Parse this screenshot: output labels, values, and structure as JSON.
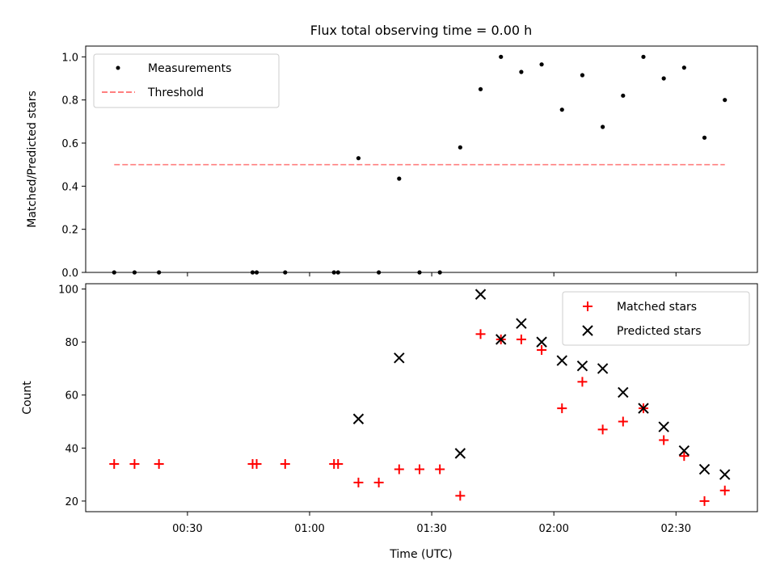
{
  "chart_data": [
    {
      "panel": "top",
      "type": "scatter",
      "title": "Flux total observing time = 0.00 h",
      "xlabel": "",
      "ylabel": "Matched/Predicted stars",
      "ylim": [
        0,
        1.05
      ],
      "yticks": [
        "0.0",
        "0.2",
        "0.4",
        "0.6",
        "0.8",
        "1.0"
      ],
      "legend_position": "top-left",
      "series": [
        {
          "name": "Measurements",
          "type": "scatter",
          "marker": "dot",
          "color": "#000000",
          "points": [
            [
              "00:12",
              0.0
            ],
            [
              "00:17",
              0.0
            ],
            [
              "00:23",
              0.0
            ],
            [
              "00:46",
              0.0
            ],
            [
              "00:47",
              0.0
            ],
            [
              "00:54",
              0.0
            ],
            [
              "01:06",
              0.0
            ],
            [
              "01:07",
              0.0
            ],
            [
              "01:12",
              0.53
            ],
            [
              "01:17",
              0.0
            ],
            [
              "01:22",
              0.435
            ],
            [
              "01:27",
              0.0
            ],
            [
              "01:32",
              0.0
            ],
            [
              "01:37",
              0.58
            ],
            [
              "01:42",
              0.85
            ],
            [
              "01:47",
              1.0
            ],
            [
              "01:52",
              0.93
            ],
            [
              "01:57",
              0.965
            ],
            [
              "02:02",
              0.755
            ],
            [
              "02:07",
              0.915
            ],
            [
              "02:12",
              0.675
            ],
            [
              "02:17",
              0.82
            ],
            [
              "02:22",
              1.0
            ],
            [
              "02:27",
              0.9
            ],
            [
              "02:32",
              0.95
            ],
            [
              "02:37",
              0.625
            ],
            [
              "02:42",
              0.8
            ]
          ]
        },
        {
          "name": "Threshold",
          "type": "line",
          "style": "dashed",
          "color": "#ff7f7f",
          "points": [
            [
              "00:12",
              0.5
            ],
            [
              "02:42",
              0.5
            ]
          ]
        }
      ]
    },
    {
      "panel": "bottom",
      "type": "scatter",
      "title": "",
      "xlabel": "Time (UTC)",
      "ylabel": "Count",
      "ylim": [
        16,
        102
      ],
      "yticks": [
        "20",
        "40",
        "60",
        "80",
        "100"
      ],
      "xticks": [
        "00:30",
        "01:00",
        "01:30",
        "02:00",
        "02:30"
      ],
      "xlim": [
        "00:05",
        "02:50"
      ],
      "legend_position": "top-right",
      "series": [
        {
          "name": "Matched stars",
          "marker": "plus",
          "color": "#ff0000",
          "points": [
            [
              "00:12",
              34
            ],
            [
              "00:17",
              34
            ],
            [
              "00:23",
              34
            ],
            [
              "00:46",
              34
            ],
            [
              "00:47",
              34
            ],
            [
              "00:54",
              34
            ],
            [
              "01:06",
              34
            ],
            [
              "01:07",
              34
            ],
            [
              "01:12",
              27
            ],
            [
              "01:17",
              27
            ],
            [
              "01:22",
              32
            ],
            [
              "01:27",
              32
            ],
            [
              "01:32",
              32
            ],
            [
              "01:37",
              22
            ],
            [
              "01:42",
              83
            ],
            [
              "01:47",
              81
            ],
            [
              "01:52",
              81
            ],
            [
              "01:57",
              77
            ],
            [
              "02:02",
              55
            ],
            [
              "02:07",
              65
            ],
            [
              "02:12",
              47
            ],
            [
              "02:17",
              50
            ],
            [
              "02:22",
              55
            ],
            [
              "02:27",
              43
            ],
            [
              "02:32",
              37
            ],
            [
              "02:37",
              20
            ],
            [
              "02:42",
              24
            ]
          ]
        },
        {
          "name": "Predicted stars",
          "marker": "x",
          "color": "#000000",
          "points": [
            [
              "01:12",
              51
            ],
            [
              "01:22",
              74
            ],
            [
              "01:37",
              38
            ],
            [
              "01:42",
              98
            ],
            [
              "01:47",
              81
            ],
            [
              "01:52",
              87
            ],
            [
              "01:57",
              80
            ],
            [
              "02:02",
              73
            ],
            [
              "02:07",
              71
            ],
            [
              "02:12",
              70
            ],
            [
              "02:17",
              61
            ],
            [
              "02:22",
              55
            ],
            [
              "02:27",
              48
            ],
            [
              "02:32",
              39
            ],
            [
              "02:37",
              32
            ],
            [
              "02:42",
              30
            ]
          ]
        }
      ]
    }
  ]
}
